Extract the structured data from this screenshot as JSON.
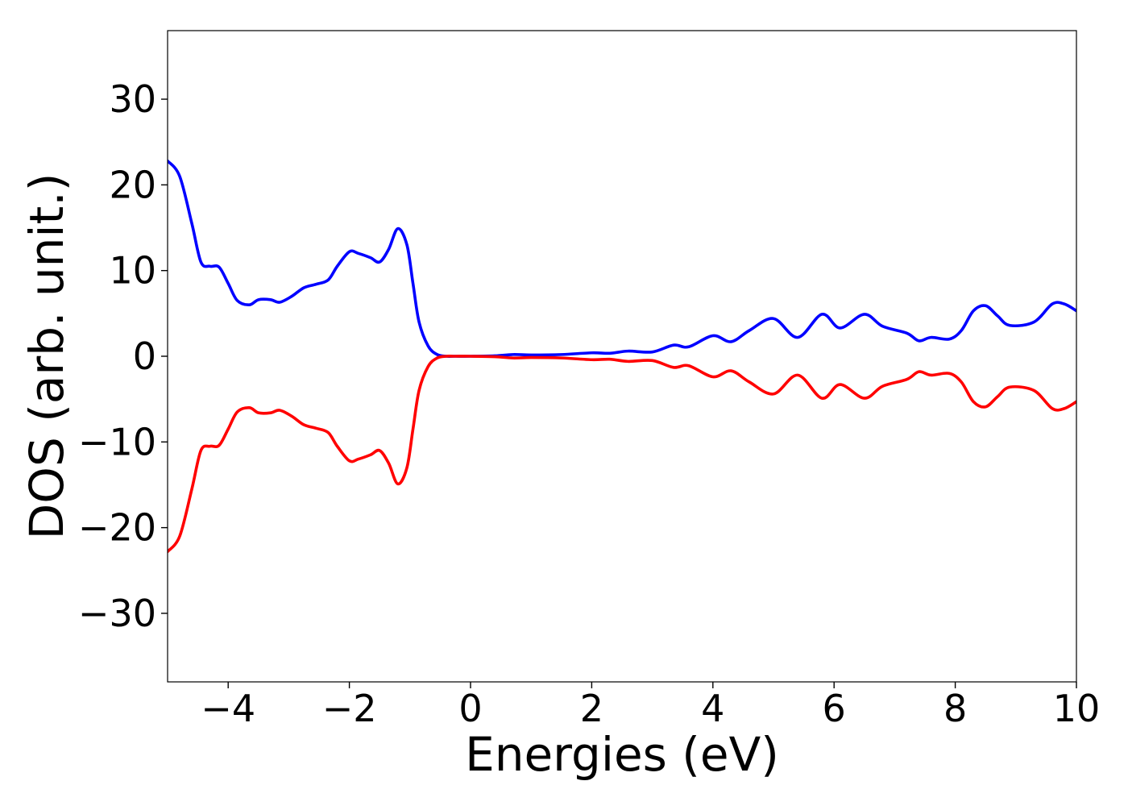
{
  "chart_data": {
    "type": "line",
    "xlabel": "Energies (eV)",
    "ylabel": "DOS (arb. unit.)",
    "xlim": [
      -5,
      10
    ],
    "ylim": [
      -38,
      38
    ],
    "xticks": [
      -4,
      -2,
      0,
      2,
      4,
      6,
      8,
      10
    ],
    "xtick_labels": [
      "−4",
      "−2",
      "0",
      "2",
      "4",
      "6",
      "8",
      "10"
    ],
    "yticks": [
      -30,
      -20,
      -10,
      0,
      10,
      20,
      30
    ],
    "ytick_labels": [
      "−30",
      "−20",
      "−10",
      "0",
      "10",
      "20",
      "30"
    ],
    "grid": false,
    "series": [
      {
        "color": "#0000ff",
        "x": [
          -5.0,
          -4.8,
          -4.6,
          -4.45,
          -4.3,
          -4.15,
          -4.0,
          -3.85,
          -3.65,
          -3.5,
          -3.3,
          -3.15,
          -2.95,
          -2.75,
          -2.55,
          -2.35,
          -2.2,
          -2.0,
          -1.85,
          -1.65,
          -1.5,
          -1.35,
          -1.2,
          -1.05,
          -0.95,
          -0.85,
          -0.7,
          -0.55,
          -0.4,
          -0.25,
          0.0,
          0.4,
          0.7,
          1.0,
          1.5,
          2.0,
          2.3,
          2.6,
          3.0,
          3.35,
          3.6,
          4.0,
          4.3,
          4.6,
          5.0,
          5.4,
          5.8,
          6.1,
          6.5,
          6.8,
          7.2,
          7.4,
          7.6,
          7.9,
          8.1,
          8.3,
          8.5,
          8.7,
          8.9,
          9.3,
          9.6,
          9.8,
          10.0
        ],
        "y": [
          22.8,
          21.0,
          15.5,
          11.0,
          10.5,
          10.4,
          8.5,
          6.5,
          6.0,
          6.6,
          6.6,
          6.3,
          7.0,
          8.0,
          8.4,
          8.9,
          10.5,
          12.2,
          12.0,
          11.5,
          11.0,
          12.5,
          14.9,
          13.0,
          8.5,
          4.0,
          1.2,
          0.2,
          0.0,
          0.0,
          0.0,
          0.05,
          0.2,
          0.15,
          0.2,
          0.4,
          0.35,
          0.6,
          0.5,
          1.3,
          1.1,
          2.4,
          1.7,
          3.0,
          4.4,
          2.2,
          4.9,
          3.3,
          4.9,
          3.5,
          2.7,
          1.8,
          2.2,
          2.0,
          3.0,
          5.3,
          5.9,
          4.7,
          3.6,
          4.0,
          6.1,
          6.1,
          5.3
        ]
      },
      {
        "color": "#ff0000",
        "x": [
          -5.0,
          -4.8,
          -4.6,
          -4.45,
          -4.3,
          -4.15,
          -4.0,
          -3.85,
          -3.65,
          -3.5,
          -3.3,
          -3.15,
          -2.95,
          -2.75,
          -2.55,
          -2.35,
          -2.2,
          -2.0,
          -1.85,
          -1.65,
          -1.5,
          -1.35,
          -1.2,
          -1.05,
          -0.95,
          -0.85,
          -0.7,
          -0.55,
          -0.4,
          -0.25,
          0.0,
          0.4,
          0.7,
          1.0,
          1.5,
          2.0,
          2.3,
          2.6,
          3.0,
          3.35,
          3.6,
          4.0,
          4.3,
          4.6,
          5.0,
          5.4,
          5.8,
          6.1,
          6.5,
          6.8,
          7.2,
          7.4,
          7.6,
          7.9,
          8.1,
          8.3,
          8.5,
          8.7,
          8.9,
          9.3,
          9.6,
          9.8,
          10.0
        ],
        "y": [
          -22.8,
          -21.0,
          -15.5,
          -11.0,
          -10.5,
          -10.4,
          -8.5,
          -6.5,
          -6.0,
          -6.6,
          -6.6,
          -6.3,
          -7.0,
          -8.0,
          -8.4,
          -8.9,
          -10.5,
          -12.2,
          -12.0,
          -11.5,
          -11.0,
          -12.5,
          -14.9,
          -13.0,
          -8.5,
          -4.0,
          -1.2,
          -0.2,
          0.0,
          0.0,
          0.0,
          -0.05,
          -0.2,
          -0.15,
          -0.2,
          -0.4,
          -0.35,
          -0.6,
          -0.5,
          -1.3,
          -1.1,
          -2.4,
          -1.7,
          -3.0,
          -4.4,
          -2.2,
          -4.9,
          -3.3,
          -4.9,
          -3.5,
          -2.7,
          -1.8,
          -2.2,
          -2.0,
          -3.0,
          -5.3,
          -5.9,
          -4.7,
          -3.6,
          -4.0,
          -6.1,
          -6.1,
          -5.3
        ]
      }
    ]
  }
}
